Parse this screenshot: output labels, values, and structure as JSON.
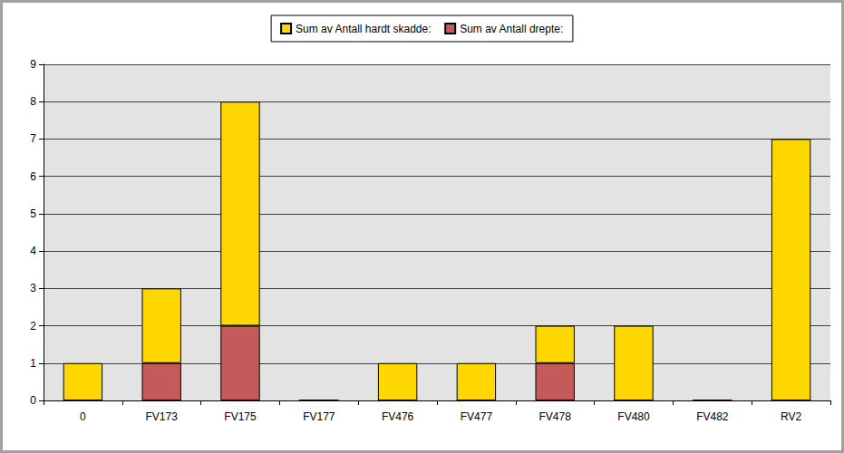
{
  "chart_data": {
    "type": "bar",
    "stacked": true,
    "grid": true,
    "legend": "top",
    "categories": [
      "0",
      "FV173",
      "FV175",
      "FV177",
      "FV476",
      "FV477",
      "FV478",
      "FV480",
      "FV482",
      "RV2"
    ],
    "series": [
      {
        "name": "Sum av Antall hardt skadde:",
        "color": "#FFD700",
        "values": [
          1,
          2,
          6,
          0,
          1,
          1,
          1,
          2,
          0,
          7
        ]
      },
      {
        "name": "Sum av Antall drepte:",
        "color": "#C55A5A",
        "values": [
          0,
          1,
          2,
          0,
          0,
          0,
          1,
          0,
          0,
          0
        ]
      }
    ],
    "ylim": [
      0,
      9
    ],
    "yticks": [
      0,
      1,
      2,
      3,
      4,
      5,
      6,
      7,
      8,
      9
    ]
  }
}
